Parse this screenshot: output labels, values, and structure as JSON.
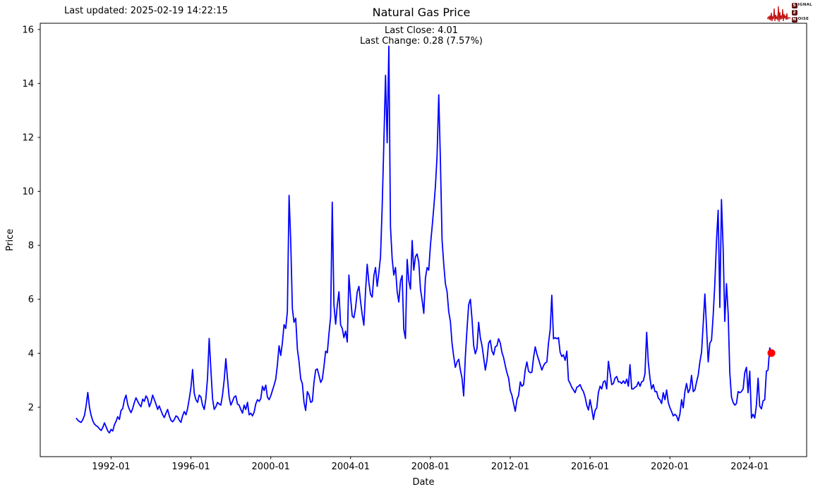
{
  "header": {
    "last_updated": "Last updated: 2025-02-19 14:22:15",
    "title": "Natural Gas Price",
    "subtitle_line1": "Last Close: 4.01",
    "subtitle_line2": "Last Change: 0.28 (7.57%)"
  },
  "logo": {
    "rows": [
      {
        "initial": "S",
        "rest": "IGNAL"
      },
      {
        "initial": "2",
        "rest": ""
      },
      {
        "initial": "N",
        "rest": "OISE"
      }
    ],
    "badge_color": "#5c1210",
    "waveform_color": "#c41414"
  },
  "chart_data": {
    "type": "line",
    "title": "Natural Gas Price",
    "xlabel": "Date",
    "ylabel": "Price",
    "line_color": "#0000ff",
    "last_point_color": "#ff0000",
    "last_close": 4.01,
    "last_change": "0.28 (7.57%)",
    "xlim": [
      1988.45,
      2026.85
    ],
    "ylim": [
      0.17,
      16.23
    ],
    "x_tick_values": [
      1992,
      1996,
      2000,
      2004,
      2008,
      2012,
      2016,
      2020,
      2024
    ],
    "x_tick_labels": [
      "1992-01",
      "1996-01",
      "2000-01",
      "2004-01",
      "2008-01",
      "2012-01",
      "2016-01",
      "2020-01",
      "2024-01"
    ],
    "y_tick_values": [
      2,
      4,
      6,
      8,
      10,
      12,
      14,
      16
    ],
    "series_start_year_decimal": 1990.25,
    "series_step_years": 0.08333333,
    "values": [
      1.6,
      1.52,
      1.47,
      1.44,
      1.54,
      1.7,
      2.05,
      2.55,
      2.0,
      1.7,
      1.5,
      1.38,
      1.32,
      1.28,
      1.2,
      1.14,
      1.25,
      1.42,
      1.28,
      1.12,
      1.05,
      1.18,
      1.12,
      1.35,
      1.48,
      1.65,
      1.55,
      1.88,
      1.95,
      2.28,
      2.45,
      2.1,
      1.92,
      1.8,
      1.95,
      2.18,
      2.35,
      2.22,
      2.1,
      2.02,
      2.3,
      2.22,
      2.42,
      2.32,
      2.02,
      2.18,
      2.45,
      2.28,
      2.12,
      1.92,
      2.05,
      1.88,
      1.72,
      1.62,
      1.78,
      1.92,
      1.68,
      1.52,
      1.46,
      1.54,
      1.68,
      1.64,
      1.52,
      1.44,
      1.68,
      1.84,
      1.72,
      1.95,
      2.32,
      2.72,
      3.4,
      2.52,
      2.28,
      2.18,
      2.45,
      2.38,
      2.08,
      1.92,
      2.32,
      3.1,
      4.55,
      3.4,
      2.32,
      1.92,
      2.02,
      2.18,
      2.12,
      2.08,
      2.45,
      3.02,
      3.8,
      3.05,
      2.38,
      2.08,
      2.22,
      2.38,
      2.42,
      2.12,
      2.08,
      1.92,
      1.78,
      2.08,
      1.92,
      2.18,
      1.72,
      1.78,
      1.68,
      1.82,
      2.12,
      2.28,
      2.22,
      2.32,
      2.78,
      2.62,
      2.82,
      2.38,
      2.28,
      2.42,
      2.62,
      2.82,
      3.04,
      3.58,
      4.28,
      3.92,
      4.38,
      5.06,
      4.92,
      5.55,
      9.85,
      8.2,
      5.65,
      5.15,
      5.3,
      4.15,
      3.7,
      3.05,
      2.88,
      2.18,
      1.88,
      2.58,
      2.45,
      2.18,
      2.22,
      2.92,
      3.38,
      3.42,
      3.18,
      2.92,
      3.04,
      3.52,
      4.08,
      4.02,
      4.72,
      5.35,
      9.6,
      5.8,
      5.08,
      5.78,
      6.28,
      5.05,
      4.92,
      4.58,
      4.82,
      4.42,
      6.9,
      6.05,
      5.38,
      5.32,
      5.68,
      6.28,
      6.48,
      5.92,
      5.42,
      5.04,
      6.32,
      7.3,
      6.62,
      6.18,
      6.08,
      6.88,
      7.18,
      6.48,
      6.98,
      7.58,
      9.48,
      11.8,
      14.3,
      11.8,
      15.38,
      8.7,
      7.5,
      6.9,
      7.18,
      6.28,
      5.9,
      6.68,
      6.88,
      4.88,
      4.55,
      7.48,
      6.68,
      6.38,
      8.18,
      7.08,
      7.58,
      7.68,
      7.38,
      6.38,
      5.98,
      5.48,
      6.78,
      7.18,
      7.08,
      8.0,
      8.68,
      9.38,
      10.2,
      11.3,
      13.58,
      11.2,
      8.2,
      7.3,
      6.58,
      6.28,
      5.55,
      5.18,
      4.38,
      3.88,
      3.48,
      3.68,
      3.78,
      3.38,
      3.08,
      2.42,
      3.88,
      4.88,
      5.8,
      6.0,
      5.28,
      4.28,
      3.98,
      4.18,
      5.15,
      4.58,
      4.28,
      3.84,
      3.38,
      3.74,
      4.38,
      4.48,
      4.08,
      3.94,
      4.24,
      4.28,
      4.54,
      4.38,
      4.04,
      3.84,
      3.54,
      3.28,
      3.08,
      2.62,
      2.44,
      2.14,
      1.85,
      2.28,
      2.44,
      2.94,
      2.78,
      2.84,
      3.38,
      3.68,
      3.34,
      3.28,
      3.3,
      3.84,
      4.24,
      3.98,
      3.78,
      3.58,
      3.38,
      3.54,
      3.64,
      3.68,
      4.38,
      4.88,
      6.15,
      4.54,
      4.58,
      4.54,
      4.58,
      4.04,
      3.88,
      3.94,
      3.74,
      4.08,
      3.0,
      2.88,
      2.74,
      2.64,
      2.54,
      2.74,
      2.78,
      2.84,
      2.68,
      2.58,
      2.38,
      2.08,
      1.9,
      2.28,
      1.94,
      1.55,
      1.88,
      1.98,
      2.54,
      2.78,
      2.68,
      2.94,
      2.98,
      2.68,
      3.7,
      3.28,
      2.84,
      2.88,
      3.08,
      3.14,
      2.94,
      2.94,
      2.88,
      2.98,
      2.88,
      3.04,
      2.78,
      3.58,
      2.68,
      2.68,
      2.74,
      2.78,
      2.94,
      2.78,
      2.94,
      2.98,
      3.24,
      4.78,
      3.68,
      3.08,
      2.68,
      2.84,
      2.58,
      2.58,
      2.34,
      2.28,
      2.14,
      2.54,
      2.28,
      2.64,
      2.18,
      1.98,
      1.84,
      1.68,
      1.74,
      1.68,
      1.5,
      1.74,
      2.28,
      1.98,
      2.58,
      2.88,
      2.54,
      2.68,
      3.18,
      2.58,
      2.64,
      2.94,
      3.18,
      3.68,
      4.04,
      5.08,
      6.2,
      4.98,
      3.68,
      4.38,
      4.48,
      5.38,
      6.58,
      8.18,
      9.3,
      5.7,
      9.7,
      7.88,
      5.18,
      6.58,
      5.48,
      3.28,
      2.38,
      2.18,
      2.08,
      2.14,
      2.58,
      2.54,
      2.58,
      2.68,
      3.28,
      3.48,
      2.54,
      3.34,
      1.6,
      1.74,
      1.6,
      2.08,
      3.08,
      2.04,
      1.94,
      2.24,
      2.28,
      3.34,
      3.38,
      4.2,
      4.01
    ]
  }
}
